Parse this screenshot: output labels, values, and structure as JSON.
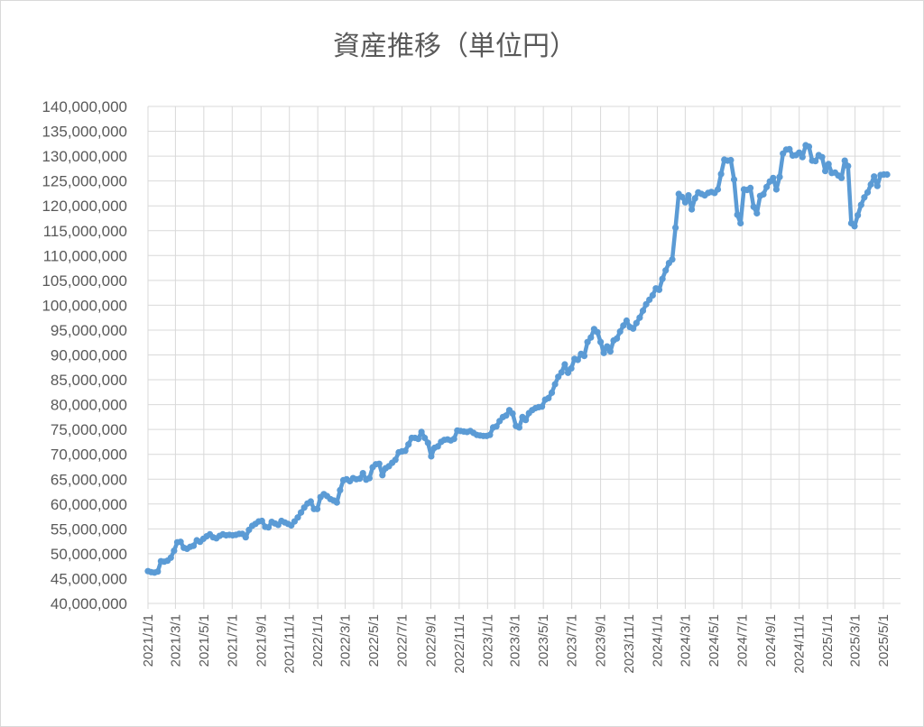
{
  "chart_data": {
    "type": "line",
    "title": "資産推移（単位円）",
    "xlabel": "",
    "ylabel": "",
    "ylim": [
      40000000,
      140000000
    ],
    "y_ticks": [
      "40,000,000",
      "45,000,000",
      "50,000,000",
      "55,000,000",
      "60,000,000",
      "65,000,000",
      "70,000,000",
      "75,000,000",
      "80,000,000",
      "85,000,000",
      "90,000,000",
      "95,000,000",
      "100,000,000",
      "105,000,000",
      "110,000,000",
      "115,000,000",
      "120,000,000",
      "125,000,000",
      "130,000,000",
      "135,000,000",
      "140,000,000"
    ],
    "x_ticks": [
      "2021/1/1",
      "2021/3/1",
      "2021/5/1",
      "2021/7/1",
      "2021/9/1",
      "2021/11/1",
      "2022/1/1",
      "2022/3/1",
      "2022/5/1",
      "2022/7/1",
      "2022/9/1",
      "2022/11/1",
      "2023/1/1",
      "2023/3/1",
      "2023/5/1",
      "2023/7/1",
      "2023/9/1",
      "2023/11/1",
      "2024/1/1",
      "2024/3/1",
      "2024/5/1",
      "2024/7/1",
      "2024/9/1",
      "2024/11/1",
      "2025/1/1",
      "2025/3/1",
      "2025/5/1"
    ],
    "grid": true,
    "color": "#5B9BD5",
    "series": [
      {
        "values": [
          [
            "2021/1/1",
            46500000
          ],
          [
            "2021/1/8",
            46300000
          ],
          [
            "2021/1/15",
            46200000
          ],
          [
            "2021/1/22",
            46400000
          ],
          [
            "2021/1/29",
            48500000
          ],
          [
            "2021/2/5",
            48400000
          ],
          [
            "2021/2/12",
            48600000
          ],
          [
            "2021/2/19",
            49200000
          ],
          [
            "2021/2/26",
            50600000
          ],
          [
            "2021/3/5",
            52300000
          ],
          [
            "2021/3/12",
            52400000
          ],
          [
            "2021/3/19",
            51200000
          ],
          [
            "2021/3/26",
            51000000
          ],
          [
            "2021/4/2",
            51400000
          ],
          [
            "2021/4/9",
            51600000
          ],
          [
            "2021/4/16",
            52700000
          ],
          [
            "2021/4/23",
            52400000
          ],
          [
            "2021/4/30",
            53000000
          ],
          [
            "2021/5/7",
            53500000
          ],
          [
            "2021/5/14",
            53900000
          ],
          [
            "2021/5/21",
            53300000
          ],
          [
            "2021/5/28",
            53100000
          ],
          [
            "2021/6/4",
            53600000
          ],
          [
            "2021/6/11",
            53900000
          ],
          [
            "2021/6/18",
            53700000
          ],
          [
            "2021/6/25",
            53800000
          ],
          [
            "2021/7/2",
            53700000
          ],
          [
            "2021/7/9",
            53800000
          ],
          [
            "2021/7/16",
            54000000
          ],
          [
            "2021/7/23",
            54000000
          ],
          [
            "2021/7/30",
            53300000
          ],
          [
            "2021/8/6",
            54800000
          ],
          [
            "2021/8/13",
            55600000
          ],
          [
            "2021/8/20",
            56000000
          ],
          [
            "2021/8/27",
            56500000
          ],
          [
            "2021/9/3",
            56600000
          ],
          [
            "2021/9/10",
            55400000
          ],
          [
            "2021/9/17",
            55300000
          ],
          [
            "2021/9/24",
            56400000
          ],
          [
            "2021/10/1",
            56100000
          ],
          [
            "2021/10/8",
            55800000
          ],
          [
            "2021/10/15",
            56600000
          ],
          [
            "2021/10/22",
            56300000
          ],
          [
            "2021/10/29",
            56000000
          ],
          [
            "2021/11/5",
            55700000
          ],
          [
            "2021/11/12",
            56500000
          ],
          [
            "2021/11/19",
            57300000
          ],
          [
            "2021/11/26",
            58300000
          ],
          [
            "2021/12/3",
            59300000
          ],
          [
            "2021/12/10",
            60100000
          ],
          [
            "2021/12/17",
            60500000
          ],
          [
            "2021/12/24",
            59000000
          ],
          [
            "2021/12/31",
            59000000
          ],
          [
            "2022/1/7",
            61400000
          ],
          [
            "2022/1/14",
            62000000
          ],
          [
            "2022/1/21",
            61600000
          ],
          [
            "2022/1/28",
            61000000
          ],
          [
            "2022/2/4",
            60700000
          ],
          [
            "2022/2/11",
            60300000
          ],
          [
            "2022/2/18",
            62800000
          ],
          [
            "2022/2/25",
            64800000
          ],
          [
            "2022/3/4",
            65000000
          ],
          [
            "2022/3/11",
            64600000
          ],
          [
            "2022/3/18",
            65200000
          ],
          [
            "2022/3/25",
            65000000
          ],
          [
            "2022/4/1",
            65100000
          ],
          [
            "2022/4/8",
            66200000
          ],
          [
            "2022/4/15",
            64900000
          ],
          [
            "2022/4/22",
            65200000
          ],
          [
            "2022/4/29",
            67400000
          ],
          [
            "2022/5/6",
            68000000
          ],
          [
            "2022/5/13",
            68100000
          ],
          [
            "2022/5/20",
            65800000
          ],
          [
            "2022/5/27",
            67200000
          ],
          [
            "2022/6/3",
            67600000
          ],
          [
            "2022/6/10",
            68300000
          ],
          [
            "2022/6/17",
            68900000
          ],
          [
            "2022/6/24",
            70400000
          ],
          [
            "2022/7/1",
            70600000
          ],
          [
            "2022/7/8",
            70700000
          ],
          [
            "2022/7/15",
            72000000
          ],
          [
            "2022/7/22",
            73300000
          ],
          [
            "2022/7/29",
            73300000
          ],
          [
            "2022/8/5",
            73100000
          ],
          [
            "2022/8/12",
            74500000
          ],
          [
            "2022/8/19",
            73300000
          ],
          [
            "2022/8/26",
            72300000
          ],
          [
            "2022/9/2",
            69600000
          ],
          [
            "2022/9/9",
            71300000
          ],
          [
            "2022/9/16",
            71600000
          ],
          [
            "2022/9/23",
            72500000
          ],
          [
            "2022/9/30",
            72900000
          ],
          [
            "2022/10/7",
            73000000
          ],
          [
            "2022/10/14",
            72800000
          ],
          [
            "2022/10/21",
            73100000
          ],
          [
            "2022/10/28",
            74800000
          ],
          [
            "2022/11/4",
            74700000
          ],
          [
            "2022/11/11",
            74600000
          ],
          [
            "2022/11/18",
            74500000
          ],
          [
            "2022/11/25",
            74700000
          ],
          [
            "2022/12/2",
            74300000
          ],
          [
            "2022/12/9",
            73900000
          ],
          [
            "2022/12/16",
            73800000
          ],
          [
            "2022/12/23",
            73700000
          ],
          [
            "2022/12/30",
            73700000
          ],
          [
            "2023/1/6",
            73900000
          ],
          [
            "2023/1/13",
            75400000
          ],
          [
            "2023/1/20",
            75600000
          ],
          [
            "2023/1/27",
            76700000
          ],
          [
            "2023/2/3",
            77500000
          ],
          [
            "2023/2/10",
            77800000
          ],
          [
            "2023/2/17",
            78900000
          ],
          [
            "2023/2/24",
            78200000
          ],
          [
            "2023/3/3",
            75700000
          ],
          [
            "2023/3/10",
            75400000
          ],
          [
            "2023/3/17",
            77500000
          ],
          [
            "2023/3/24",
            76900000
          ],
          [
            "2023/3/31",
            78300000
          ],
          [
            "2023/4/7",
            78900000
          ],
          [
            "2023/4/14",
            79300000
          ],
          [
            "2023/4/21",
            79500000
          ],
          [
            "2023/4/28",
            79600000
          ],
          [
            "2023/5/5",
            81000000
          ],
          [
            "2023/5/12",
            81300000
          ],
          [
            "2023/5/19",
            82400000
          ],
          [
            "2023/5/26",
            84100000
          ],
          [
            "2023/6/2",
            85600000
          ],
          [
            "2023/6/9",
            86500000
          ],
          [
            "2023/6/16",
            88100000
          ],
          [
            "2023/6/23",
            86400000
          ],
          [
            "2023/6/30",
            87300000
          ],
          [
            "2023/7/7",
            89200000
          ],
          [
            "2023/7/14",
            89000000
          ],
          [
            "2023/7/21",
            90200000
          ],
          [
            "2023/7/28",
            89800000
          ],
          [
            "2023/8/4",
            92600000
          ],
          [
            "2023/8/11",
            93500000
          ],
          [
            "2023/8/18",
            95200000
          ],
          [
            "2023/8/25",
            94600000
          ],
          [
            "2023/9/1",
            92600000
          ],
          [
            "2023/9/8",
            90400000
          ],
          [
            "2023/9/15",
            91700000
          ],
          [
            "2023/9/22",
            90700000
          ],
          [
            "2023/9/29",
            92900000
          ],
          [
            "2023/10/6",
            93300000
          ],
          [
            "2023/10/13",
            94700000
          ],
          [
            "2023/10/20",
            95900000
          ],
          [
            "2023/10/27",
            96900000
          ],
          [
            "2023/11/3",
            95600000
          ],
          [
            "2023/11/10",
            95300000
          ],
          [
            "2023/11/17",
            96400000
          ],
          [
            "2023/11/24",
            97500000
          ],
          [
            "2023/12/1",
            98900000
          ],
          [
            "2023/12/8",
            100200000
          ],
          [
            "2023/12/15",
            101100000
          ],
          [
            "2023/12/22",
            102000000
          ],
          [
            "2023/12/29",
            103400000
          ],
          [
            "2024/1/5",
            103100000
          ],
          [
            "2024/1/12",
            105300000
          ],
          [
            "2024/1/19",
            107000000
          ],
          [
            "2024/1/26",
            108500000
          ],
          [
            "2024/2/2",
            109200000
          ],
          [
            "2024/2/9",
            115600000
          ],
          [
            "2024/2/16",
            122400000
          ],
          [
            "2024/2/23",
            121800000
          ],
          [
            "2024/3/1",
            120700000
          ],
          [
            "2024/3/8",
            122100000
          ],
          [
            "2024/3/15",
            119300000
          ],
          [
            "2024/3/22",
            121500000
          ],
          [
            "2024/3/29",
            122700000
          ],
          [
            "2024/4/5",
            122400000
          ],
          [
            "2024/4/12",
            122100000
          ],
          [
            "2024/4/19",
            122600000
          ],
          [
            "2024/4/26",
            122800000
          ],
          [
            "2024/5/3",
            122600000
          ],
          [
            "2024/5/10",
            123300000
          ],
          [
            "2024/5/17",
            126400000
          ],
          [
            "2024/5/24",
            129300000
          ],
          [
            "2024/5/31",
            129100000
          ],
          [
            "2024/6/7",
            129200000
          ],
          [
            "2024/6/14",
            125300000
          ],
          [
            "2024/6/21",
            118200000
          ],
          [
            "2024/6/28",
            116500000
          ],
          [
            "2024/7/5",
            123300000
          ],
          [
            "2024/7/12",
            123200000
          ],
          [
            "2024/7/19",
            123600000
          ],
          [
            "2024/7/26",
            119800000
          ],
          [
            "2024/8/2",
            118500000
          ],
          [
            "2024/8/9",
            122000000
          ],
          [
            "2024/8/16",
            122300000
          ],
          [
            "2024/8/23",
            123800000
          ],
          [
            "2024/8/30",
            124900000
          ],
          [
            "2024/9/6",
            125600000
          ],
          [
            "2024/9/13",
            123300000
          ],
          [
            "2024/9/20",
            125800000
          ],
          [
            "2024/9/27",
            130500000
          ],
          [
            "2024/10/4",
            131300000
          ],
          [
            "2024/10/11",
            131400000
          ],
          [
            "2024/10/18",
            130100000
          ],
          [
            "2024/10/25",
            130200000
          ],
          [
            "2024/11/1",
            130700000
          ],
          [
            "2024/11/8",
            129800000
          ],
          [
            "2024/11/15",
            132200000
          ],
          [
            "2024/11/22",
            131900000
          ],
          [
            "2024/11/29",
            129100000
          ],
          [
            "2024/12/6",
            129000000
          ],
          [
            "2024/12/13",
            130200000
          ],
          [
            "2024/12/20",
            129800000
          ],
          [
            "2024/12/27",
            127000000
          ],
          [
            "2025/1/3",
            128400000
          ],
          [
            "2025/1/10",
            126600000
          ],
          [
            "2025/1/17",
            126700000
          ],
          [
            "2025/1/24",
            126100000
          ],
          [
            "2025/1/31",
            125600000
          ],
          [
            "2025/2/7",
            129100000
          ],
          [
            "2025/2/14",
            128000000
          ],
          [
            "2025/2/21",
            116500000
          ],
          [
            "2025/2/28",
            115900000
          ],
          [
            "2025/3/7",
            118100000
          ],
          [
            "2025/3/14",
            120200000
          ],
          [
            "2025/3/21",
            121700000
          ],
          [
            "2025/3/28",
            122700000
          ],
          [
            "2025/4/4",
            124300000
          ],
          [
            "2025/4/11",
            125900000
          ],
          [
            "2025/4/18",
            124000000
          ],
          [
            "2025/4/25",
            126200000
          ],
          [
            "2025/5/2",
            126300000
          ],
          [
            "2025/5/9",
            126300000
          ]
        ]
      }
    ]
  }
}
